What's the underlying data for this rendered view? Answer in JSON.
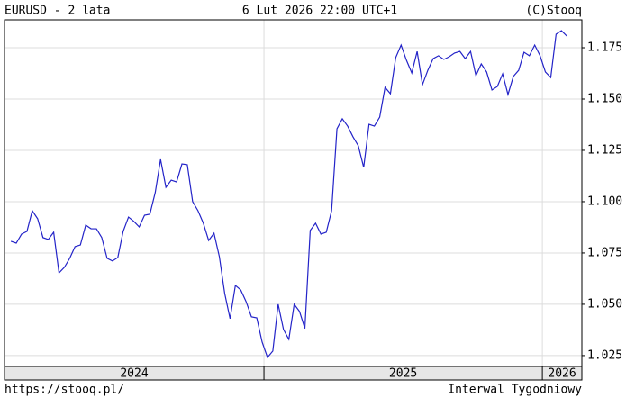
{
  "chart_data": {
    "type": "line",
    "title": "EURUSD - 2 lata",
    "subtitle": "6 Lut 2026 22:00 UTC+1",
    "source": "(C)Stooq",
    "url": "https://stooq.pl/",
    "interval": "Interwal Tygodniowy",
    "color": "#2323c8",
    "grid": true,
    "xlim": [
      2024.068,
      2026.142
    ],
    "xticks": [
      2025,
      2026
    ],
    "x_band_labels": [
      "2024",
      "2025",
      "2026"
    ],
    "ylim": [
      1.0197,
      1.1886
    ],
    "yticks": [
      1.025,
      {
        "value": 1.05,
        "label": "1.050"
      },
      1.075,
      {
        "value": 1.1,
        "label": "1.100"
      },
      1.125,
      {
        "value": 1.15,
        "label": "1.150"
      },
      1.175
    ],
    "x": [
      2024.091,
      2024.1102,
      2024.1294,
      2024.1486,
      2024.1678,
      2024.187,
      2024.2062,
      2024.2254,
      2024.2446,
      2024.2638,
      2024.283,
      2024.3022,
      2024.3214,
      2024.3406,
      2024.3598,
      2024.379,
      2024.3982,
      2024.4174,
      2024.4366,
      2024.4558,
      2024.475,
      2024.4942,
      2024.5134,
      2024.5326,
      2024.5518,
      2024.571,
      2024.5902,
      2024.6094,
      2024.6286,
      2024.6478,
      2024.667,
      2024.6862,
      2024.7054,
      2024.7246,
      2024.7438,
      2024.763,
      2024.7822,
      2024.8014,
      2024.8206,
      2024.8398,
      2024.859,
      2024.8782,
      2024.8974,
      2024.9166,
      2024.9358,
      2024.955,
      2024.9742,
      2024.9934,
      2025.0126,
      2025.0318,
      2025.051,
      2025.0702,
      2025.0894,
      2025.1086,
      2025.1278,
      2025.147,
      2025.1662,
      2025.1854,
      2025.2046,
      2025.2238,
      2025.243,
      2025.2622,
      2025.2814,
      2025.3006,
      2025.3198,
      2025.339,
      2025.3582,
      2025.3774,
      2025.3966,
      2025.4158,
      2025.435,
      2025.4542,
      2025.4734,
      2025.4926,
      2025.5118,
      2025.531,
      2025.5502,
      2025.5694,
      2025.5886,
      2025.6078,
      2025.627,
      2025.6462,
      2025.6654,
      2025.6846,
      2025.7038,
      2025.723,
      2025.7422,
      2025.7614,
      2025.7806,
      2025.7998,
      2025.819,
      2025.8382,
      2025.8574,
      2025.8766,
      2025.8958,
      2025.915,
      2025.9342,
      2025.9534,
      2025.9726,
      2025.9918,
      2026.011,
      2026.0302,
      2026.0494,
      2026.0686,
      2026.0878
    ],
    "values": [
      1.0807,
      1.0798,
      1.0842,
      1.0855,
      1.0956,
      1.0917,
      1.0825,
      1.0816,
      1.0851,
      1.0653,
      1.068,
      1.0724,
      1.0781,
      1.0789,
      1.0886,
      1.0868,
      1.0868,
      1.0825,
      1.0724,
      1.0711,
      1.0728,
      1.0855,
      1.0925,
      1.0904,
      1.0877,
      1.0934,
      1.0939,
      1.1044,
      1.1206,
      1.107,
      1.1105,
      1.1096,
      1.1184,
      1.118,
      1.1,
      1.0956,
      1.0895,
      1.0811,
      1.0846,
      1.0732,
      1.0553,
      1.043,
      1.0592,
      1.057,
      1.0513,
      1.0439,
      1.0434,
      1.0316,
      1.0241,
      1.0272,
      1.05,
      1.0377,
      1.0329,
      1.05,
      1.0465,
      1.0382,
      1.086,
      1.0895,
      1.0842,
      1.0851,
      1.0956,
      1.1355,
      1.1404,
      1.1368,
      1.1316,
      1.1272,
      1.1167,
      1.1377,
      1.1368,
      1.1412,
      1.1557,
      1.1526,
      1.1702,
      1.1763,
      1.1689,
      1.1627,
      1.1732,
      1.157,
      1.164,
      1.1697,
      1.1711,
      1.1693,
      1.1706,
      1.1724,
      1.1732,
      1.1697,
      1.1732,
      1.1614,
      1.1671,
      1.1632,
      1.1544,
      1.1561,
      1.1623,
      1.1522,
      1.161,
      1.164,
      1.1728,
      1.1711,
      1.1763,
      1.1711,
      1.1632,
      1.1605,
      1.1816,
      1.1833,
      1.1807
    ]
  }
}
